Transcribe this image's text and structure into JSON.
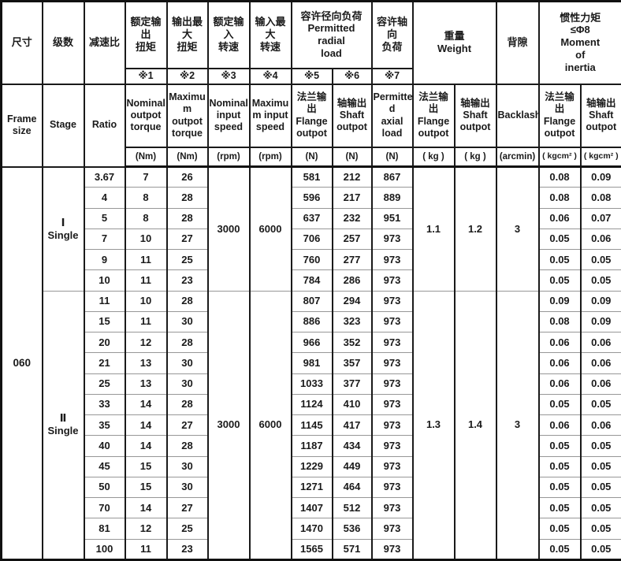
{
  "table": {
    "frame_size": "060",
    "colors": {
      "header_blue": "#d5e8ee",
      "grid_dark": "#1a1a1a",
      "grid_light": "#979797",
      "text": "#1a1a1a"
    },
    "head": {
      "frame": {
        "zh": "尺寸",
        "en": "Frame\nsize"
      },
      "stage": {
        "zh": "级数",
        "en": "Stage"
      },
      "ratio": {
        "zh": "减速比",
        "en": "Ratio"
      },
      "nominal_torque": {
        "zh": "额定输出\n扭矩",
        "note": "※1",
        "en": "Nominal\noutpot\ntorque",
        "unit": "(Nm)"
      },
      "max_torque": {
        "zh": "输出最大\n扭矩",
        "note": "※2",
        "en": "Maximu\nm\noutpot\ntorque",
        "unit": "(Nm)"
      },
      "nominal_speed": {
        "zh": "额定输入\n转速",
        "note": "※3",
        "en": "Nominal\ninput\nspeed",
        "unit": "(rpm)"
      },
      "max_speed": {
        "zh": "输入最大\n转速",
        "note": "※4",
        "en": "Maximu\nm input\nspeed",
        "unit": "(rpm)"
      },
      "radial": {
        "title": "容许径向负荷\nPermitted radial\nload",
        "flange": {
          "note": "※5",
          "label": "法兰输出\nFlange\noutpot",
          "unit": "(N)"
        },
        "shaft": {
          "note": "※6",
          "label": "轴输出\nShaft\noutpot",
          "unit": "(N)"
        }
      },
      "axial": {
        "zh": "容许轴向\n负荷",
        "note": "※7",
        "en": "Permitte\nd\naxial\nload",
        "unit": "(N)"
      },
      "weight": {
        "title": "重量\nWeight",
        "flange": {
          "label": "法兰输出\nFlange\noutpot",
          "unit": "( kg )"
        },
        "shaft": {
          "label": "轴输出\nShaft\noutpot",
          "unit": "( kg )"
        }
      },
      "backlash": {
        "zh": "背隙",
        "en": "Backlash",
        "unit": "(arcmin)"
      },
      "inertia": {
        "title": "惯性力矩\n≤Φ8\nMoment\nof\ninertia",
        "flange": {
          "label": "法兰输出\nFlange\noutpot",
          "unit": "( kgcm² )"
        },
        "shaft": {
          "label": "轴输出\nShaft\noutpot",
          "unit": "( kgcm² )"
        }
      }
    },
    "groups": [
      {
        "stage": "Ⅰ\nSingle",
        "speed_nominal": "3000",
        "speed_max": "6000",
        "weight_flange": "1.1",
        "weight_shaft": "1.2",
        "backlash": "3",
        "rows": [
          {
            "ratio": "3.67",
            "nominal_torque": "7",
            "max_torque": "26",
            "radial_flange": "581",
            "radial_shaft": "212",
            "axial": "867",
            "inertia_flange": "0.08",
            "inertia_shaft": "0.09"
          },
          {
            "ratio": "4",
            "nominal_torque": "8",
            "max_torque": "28",
            "radial_flange": "596",
            "radial_shaft": "217",
            "axial": "889",
            "inertia_flange": "0.08",
            "inertia_shaft": "0.08"
          },
          {
            "ratio": "5",
            "nominal_torque": "8",
            "max_torque": "28",
            "radial_flange": "637",
            "radial_shaft": "232",
            "axial": "951",
            "inertia_flange": "0.06",
            "inertia_shaft": "0.07"
          },
          {
            "ratio": "7",
            "nominal_torque": "10",
            "max_torque": "27",
            "radial_flange": "706",
            "radial_shaft": "257",
            "axial": "973",
            "inertia_flange": "0.05",
            "inertia_shaft": "0.06"
          },
          {
            "ratio": "9",
            "nominal_torque": "11",
            "max_torque": "25",
            "radial_flange": "760",
            "radial_shaft": "277",
            "axial": "973",
            "inertia_flange": "0.05",
            "inertia_shaft": "0.05"
          },
          {
            "ratio": "10",
            "nominal_torque": "11",
            "max_torque": "23",
            "radial_flange": "784",
            "radial_shaft": "286",
            "axial": "973",
            "inertia_flange": "0.05",
            "inertia_shaft": "0.05"
          }
        ]
      },
      {
        "stage": "Ⅱ\nSingle",
        "speed_nominal": "3000",
        "speed_max": "6000",
        "weight_flange": "1.3",
        "weight_shaft": "1.4",
        "backlash": "3",
        "rows": [
          {
            "ratio": "11",
            "nominal_torque": "10",
            "max_torque": "28",
            "radial_flange": "807",
            "radial_shaft": "294",
            "axial": "973",
            "inertia_flange": "0.09",
            "inertia_shaft": "0.09"
          },
          {
            "ratio": "15",
            "nominal_torque": "11",
            "max_torque": "30",
            "radial_flange": "886",
            "radial_shaft": "323",
            "axial": "973",
            "inertia_flange": "0.08",
            "inertia_shaft": "0.09"
          },
          {
            "ratio": "20",
            "nominal_torque": "12",
            "max_torque": "28",
            "radial_flange": "966",
            "radial_shaft": "352",
            "axial": "973",
            "inertia_flange": "0.06",
            "inertia_shaft": "0.06"
          },
          {
            "ratio": "21",
            "nominal_torque": "13",
            "max_torque": "30",
            "radial_flange": "981",
            "radial_shaft": "357",
            "axial": "973",
            "inertia_flange": "0.06",
            "inertia_shaft": "0.06"
          },
          {
            "ratio": "25",
            "nominal_torque": "13",
            "max_torque": "30",
            "radial_flange": "1033",
            "radial_shaft": "377",
            "axial": "973",
            "inertia_flange": "0.06",
            "inertia_shaft": "0.06"
          },
          {
            "ratio": "33",
            "nominal_torque": "14",
            "max_torque": "28",
            "radial_flange": "1124",
            "radial_shaft": "410",
            "axial": "973",
            "inertia_flange": "0.05",
            "inertia_shaft": "0.05"
          },
          {
            "ratio": "35",
            "nominal_torque": "14",
            "max_torque": "27",
            "radial_flange": "1145",
            "radial_shaft": "417",
            "axial": "973",
            "inertia_flange": "0.06",
            "inertia_shaft": "0.06"
          },
          {
            "ratio": "40",
            "nominal_torque": "14",
            "max_torque": "28",
            "radial_flange": "1187",
            "radial_shaft": "434",
            "axial": "973",
            "inertia_flange": "0.05",
            "inertia_shaft": "0.05"
          },
          {
            "ratio": "45",
            "nominal_torque": "15",
            "max_torque": "30",
            "radial_flange": "1229",
            "radial_shaft": "449",
            "axial": "973",
            "inertia_flange": "0.05",
            "inertia_shaft": "0.05"
          },
          {
            "ratio": "50",
            "nominal_torque": "15",
            "max_torque": "30",
            "radial_flange": "1271",
            "radial_shaft": "464",
            "axial": "973",
            "inertia_flange": "0.05",
            "inertia_shaft": "0.05"
          },
          {
            "ratio": "70",
            "nominal_torque": "14",
            "max_torque": "27",
            "radial_flange": "1407",
            "radial_shaft": "512",
            "axial": "973",
            "inertia_flange": "0.05",
            "inertia_shaft": "0.05"
          },
          {
            "ratio": "81",
            "nominal_torque": "12",
            "max_torque": "25",
            "radial_flange": "1470",
            "radial_shaft": "536",
            "axial": "973",
            "inertia_flange": "0.05",
            "inertia_shaft": "0.05"
          },
          {
            "ratio": "100",
            "nominal_torque": "11",
            "max_torque": "23",
            "radial_flange": "1565",
            "radial_shaft": "571",
            "axial": "973",
            "inertia_flange": "0.05",
            "inertia_shaft": "0.05"
          }
        ]
      }
    ]
  }
}
